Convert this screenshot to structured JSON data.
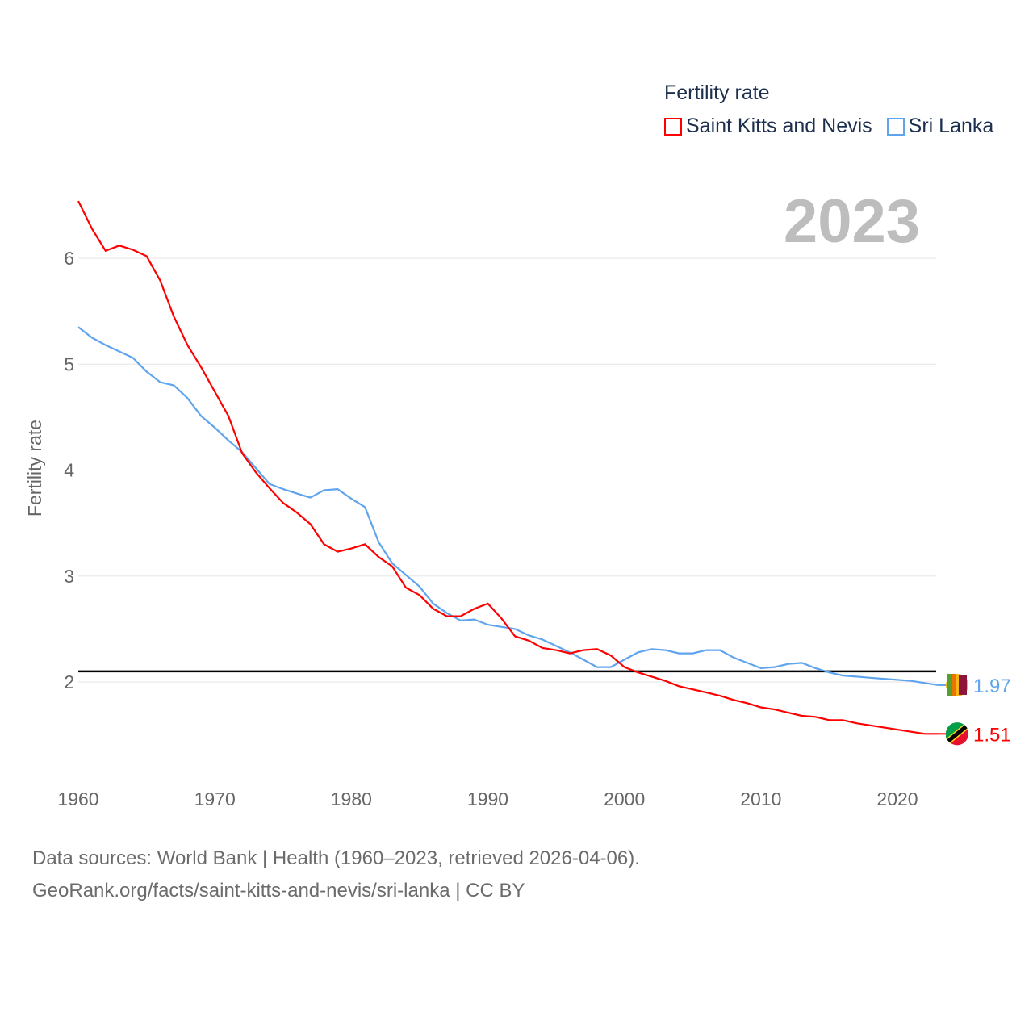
{
  "chart_data": {
    "type": "line",
    "title": "",
    "xlabel": "",
    "ylabel": "Fertility rate",
    "year_label": "2023",
    "legend_title": "Fertility rate",
    "legend_position": "top-right",
    "xlim": [
      1960,
      2023
    ],
    "ylim": [
      1.2,
      6.6
    ],
    "x_ticks": [
      1960,
      1970,
      1980,
      1990,
      2000,
      2010,
      2020
    ],
    "y_ticks": [
      2,
      3,
      4,
      5,
      6
    ],
    "grid": true,
    "reference_line": 2.1,
    "x": [
      1960,
      1961,
      1962,
      1963,
      1964,
      1965,
      1966,
      1967,
      1968,
      1969,
      1970,
      1971,
      1972,
      1973,
      1974,
      1975,
      1976,
      1977,
      1978,
      1979,
      1980,
      1981,
      1982,
      1983,
      1984,
      1985,
      1986,
      1987,
      1988,
      1989,
      1990,
      1991,
      1992,
      1993,
      1994,
      1995,
      1996,
      1997,
      1998,
      1999,
      2000,
      2001,
      2002,
      2003,
      2004,
      2005,
      2006,
      2007,
      2008,
      2009,
      2010,
      2011,
      2012,
      2013,
      2014,
      2015,
      2016,
      2017,
      2018,
      2019,
      2020,
      2021,
      2022,
      2023
    ],
    "series": [
      {
        "name": "Saint Kitts and Nevis",
        "color": "#ff0000",
        "end_label": "1.51",
        "values": [
          6.54,
          6.28,
          6.07,
          6.12,
          6.08,
          6.02,
          5.79,
          5.45,
          5.18,
          4.97,
          4.74,
          4.51,
          4.16,
          3.98,
          3.83,
          3.69,
          3.6,
          3.49,
          3.3,
          3.23,
          3.26,
          3.3,
          3.18,
          3.09,
          2.89,
          2.82,
          2.69,
          2.62,
          2.62,
          2.69,
          2.74,
          2.6,
          2.43,
          2.39,
          2.32,
          2.3,
          2.27,
          2.3,
          2.31,
          2.25,
          2.14,
          2.09,
          2.05,
          2.01,
          1.96,
          1.93,
          1.9,
          1.87,
          1.83,
          1.8,
          1.76,
          1.74,
          1.71,
          1.68,
          1.67,
          1.64,
          1.64,
          1.61,
          1.59,
          1.57,
          1.55,
          1.53,
          1.51,
          1.51
        ]
      },
      {
        "name": "Sri Lanka",
        "color": "#5fa4ee",
        "end_label": "1.97",
        "values": [
          5.35,
          5.25,
          5.18,
          5.12,
          5.06,
          4.93,
          4.83,
          4.8,
          4.68,
          4.51,
          4.4,
          4.28,
          4.17,
          4.02,
          3.87,
          3.82,
          3.78,
          3.74,
          3.81,
          3.82,
          3.73,
          3.65,
          3.32,
          3.12,
          3.01,
          2.9,
          2.74,
          2.65,
          2.58,
          2.59,
          2.54,
          2.52,
          2.5,
          2.44,
          2.4,
          2.34,
          2.28,
          2.21,
          2.14,
          2.14,
          2.21,
          2.28,
          2.31,
          2.3,
          2.27,
          2.27,
          2.3,
          2.3,
          2.23,
          2.18,
          2.13,
          2.14,
          2.17,
          2.18,
          2.13,
          2.09,
          2.06,
          2.05,
          2.04,
          2.03,
          2.02,
          2.01,
          1.99,
          1.97
        ]
      }
    ]
  },
  "footer": {
    "line1": "Data sources: World Bank | Health (1960–2023, retrieved 2026-04-06).",
    "line2": "GeoRank.org/facts/saint-kitts-and-nevis/sri-lanka | CC BY"
  }
}
